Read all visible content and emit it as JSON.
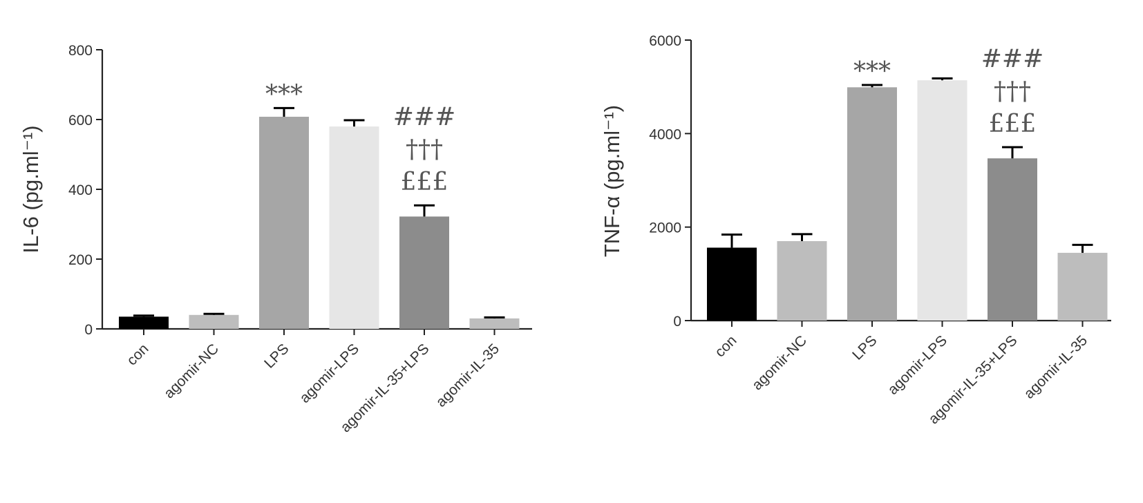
{
  "chart_data": [
    {
      "type": "bar",
      "ylabel": "IL-6 (pg.ml⁻¹)",
      "ylim": [
        0,
        800
      ],
      "yticks": [
        0,
        200,
        400,
        600,
        800
      ],
      "categories": [
        "con",
        "agomir-NC",
        "LPS",
        "agomir-LPS",
        "agomir-IL-35+LPS",
        "agomir-IL-35"
      ],
      "values": [
        35,
        40,
        608,
        580,
        322,
        30
      ],
      "errors": [
        3,
        3,
        25,
        18,
        32,
        3
      ],
      "colors": [
        "#000000",
        "#bdbdbd",
        "#a6a6a6",
        "#e6e6e6",
        "#8c8c8c",
        "#bdbdbd"
      ],
      "annotations": [
        {
          "category": "LPS",
          "lines": [
            "***"
          ]
        },
        {
          "category": "agomir-IL-35+LPS",
          "lines": [
            "###",
            "†††",
            "£££"
          ]
        }
      ],
      "grid": false
    },
    {
      "type": "bar",
      "ylabel": "TNF-α (pg.ml⁻¹)",
      "ylim": [
        0,
        6000
      ],
      "yticks": [
        0,
        2000,
        4000,
        6000
      ],
      "categories": [
        "con",
        "agomir-NC",
        "LPS",
        "agomir-LPS",
        "agomir-IL-35+LPS",
        "agomir-IL-35"
      ],
      "values": [
        1560,
        1700,
        4990,
        5140,
        3470,
        1450
      ],
      "errors": [
        280,
        150,
        50,
        40,
        240,
        170
      ],
      "colors": [
        "#000000",
        "#bdbdbd",
        "#a6a6a6",
        "#e6e6e6",
        "#8c8c8c",
        "#bdbdbd"
      ],
      "annotations": [
        {
          "category": "LPS",
          "lines": [
            "***"
          ]
        },
        {
          "category": "agomir-IL-35+LPS",
          "lines": [
            "###",
            "†††",
            "£££"
          ]
        }
      ],
      "grid": false
    }
  ]
}
